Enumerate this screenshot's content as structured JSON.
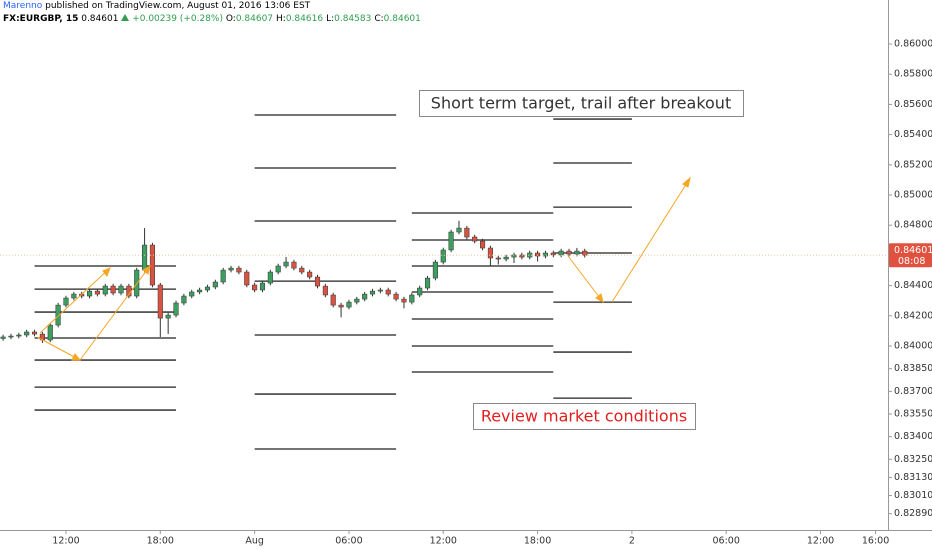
{
  "chart_data": {
    "type": "candlestick",
    "header": {
      "publisher": "Marenno",
      "published": "published on TradingView.com, August 01, 2016 13:06 EST",
      "symbol": "FX:EURGBP, 15",
      "last": "0.84601",
      "change": "+0.00239 (+0.28%)",
      "ohlc": [
        [
          "O:",
          "0.84607"
        ],
        [
          "H:",
          "0.84616"
        ],
        [
          "L:",
          "0.84583"
        ],
        [
          "C:",
          "0.84601"
        ]
      ]
    },
    "open": [
      0.8405,
      0.8406,
      0.84066,
      0.84073,
      0.84093,
      0.84079,
      0.8404,
      0.84139,
      0.84271,
      0.84318,
      0.84344,
      0.84331,
      0.84364,
      0.84344,
      0.84397,
      0.84351,
      0.84397,
      0.84331,
      0.84503,
      0.84669,
      0.84404,
      0.84185,
      0.84205,
      0.84285,
      0.84331,
      0.84358,
      0.84371,
      0.84391,
      0.84424,
      0.84503,
      0.84516,
      0.8449,
      0.84404,
      0.84371,
      0.84417,
      0.8449,
      0.8453,
      0.84556,
      0.84516,
      0.8449,
      0.84457,
      0.84397,
      0.84338,
      0.84271,
      0.84258,
      0.84291,
      0.84311,
      0.84344,
      0.84364,
      0.84371,
      0.84344,
      0.84311,
      0.84291,
      0.84338,
      0.84384,
      0.8445,
      0.84556,
      0.84636,
      0.84755,
      0.84781,
      0.84722,
      0.84695,
      0.84649,
      0.84583,
      0.84576,
      0.84589,
      0.84603,
      0.84589,
      0.84616,
      0.84596,
      0.84616,
      0.84603,
      0.84629,
      0.84609,
      0.84629
    ],
    "high": [
      0.84075,
      0.84081,
      0.84088,
      0.84108,
      0.84108,
      0.84094,
      0.84154,
      0.84286,
      0.84333,
      0.84359,
      0.84359,
      0.84379,
      0.84379,
      0.84412,
      0.84412,
      0.84412,
      0.84412,
      0.84518,
      0.84781,
      0.84684,
      0.84419,
      0.8422,
      0.843,
      0.84346,
      0.84373,
      0.84386,
      0.84406,
      0.84439,
      0.84518,
      0.84531,
      0.84531,
      0.84505,
      0.84419,
      0.84432,
      0.84505,
      0.84545,
      0.8459,
      0.84571,
      0.84531,
      0.84505,
      0.84472,
      0.84412,
      0.84353,
      0.84286,
      0.84306,
      0.84326,
      0.84359,
      0.84379,
      0.84386,
      0.84386,
      0.84359,
      0.84326,
      0.84353,
      0.84399,
      0.84465,
      0.84571,
      0.84651,
      0.8477,
      0.8483,
      0.84796,
      0.84737,
      0.8471,
      0.84664,
      0.84598,
      0.84604,
      0.84618,
      0.84618,
      0.84631,
      0.84631,
      0.84631,
      0.84631,
      0.84644,
      0.84644,
      0.8465,
      0.84644
    ],
    "low": [
      0.84035,
      0.84045,
      0.84051,
      0.84058,
      0.84064,
      0.8402,
      0.84025,
      0.84124,
      0.84256,
      0.84303,
      0.84316,
      0.84316,
      0.84329,
      0.84329,
      0.84336,
      0.84336,
      0.84316,
      0.84316,
      0.84488,
      0.84389,
      0.8406,
      0.8408,
      0.8419,
      0.8427,
      0.84316,
      0.84343,
      0.84356,
      0.84376,
      0.84409,
      0.84488,
      0.84475,
      0.84389,
      0.84356,
      0.84356,
      0.84402,
      0.84475,
      0.84515,
      0.84501,
      0.84475,
      0.84442,
      0.84382,
      0.84323,
      0.84256,
      0.8419,
      0.84243,
      0.84276,
      0.84296,
      0.84329,
      0.84349,
      0.84329,
      0.84296,
      0.8425,
      0.84276,
      0.84323,
      0.84369,
      0.84435,
      0.84541,
      0.84621,
      0.8474,
      0.84707,
      0.8468,
      0.84634,
      0.8453,
      0.8454,
      0.84561,
      0.8455,
      0.84574,
      0.84574,
      0.8456,
      0.84581,
      0.84588,
      0.84588,
      0.84594,
      0.84594,
      0.84586
    ],
    "close": [
      0.8406,
      0.84066,
      0.84073,
      0.84093,
      0.84079,
      0.8404,
      0.84139,
      0.84271,
      0.84318,
      0.84344,
      0.84331,
      0.84364,
      0.84344,
      0.84397,
      0.84351,
      0.84397,
      0.84331,
      0.84503,
      0.84669,
      0.84404,
      0.84185,
      0.84205,
      0.84285,
      0.84331,
      0.84358,
      0.84371,
      0.84391,
      0.84424,
      0.84503,
      0.84516,
      0.8449,
      0.84404,
      0.84371,
      0.84417,
      0.8449,
      0.8453,
      0.84556,
      0.84516,
      0.8449,
      0.84457,
      0.84397,
      0.84338,
      0.84271,
      0.84258,
      0.84291,
      0.84311,
      0.84344,
      0.84364,
      0.84371,
      0.84344,
      0.84311,
      0.84291,
      0.84338,
      0.84384,
      0.8445,
      0.84556,
      0.84636,
      0.84755,
      0.84781,
      0.84722,
      0.84695,
      0.84649,
      0.84583,
      0.84576,
      0.84589,
      0.84603,
      0.84589,
      0.84616,
      0.84596,
      0.84616,
      0.84603,
      0.84629,
      0.84609,
      0.84629,
      0.84601
    ],
    "up_color": "#3d9e5f",
    "down_color": "#d75442",
    "wick_color": "#333333",
    "ylim": [
      0.82795,
      0.86159
    ],
    "yticks": [
      {
        "value": 0.86,
        "label": "0.86000"
      },
      {
        "value": 0.858,
        "label": "0.85800"
      },
      {
        "value": 0.856,
        "label": "0.85600"
      },
      {
        "value": 0.854,
        "label": "0.85400"
      },
      {
        "value": 0.852,
        "label": "0.85200"
      },
      {
        "value": 0.85,
        "label": "0.85000"
      },
      {
        "value": 0.848,
        "label": "0.84800"
      },
      {
        "value": 0.844,
        "label": "0.84400"
      },
      {
        "value": 0.842,
        "label": "0.84200"
      },
      {
        "value": 0.84,
        "label": "0.84000"
      },
      {
        "value": 0.8385,
        "label": "0.83850"
      },
      {
        "value": 0.837,
        "label": "0.83700"
      },
      {
        "value": 0.8355,
        "label": "0.83550"
      },
      {
        "value": 0.834,
        "label": "0.83400"
      },
      {
        "value": 0.8325,
        "label": "0.83250"
      },
      {
        "value": 0.8313,
        "label": "0.83130"
      },
      {
        "value": 0.8301,
        "label": "0.83010"
      },
      {
        "value": 0.8289,
        "label": "0.82890"
      }
    ],
    "xticks": [
      {
        "value": 8,
        "label": "12:00"
      },
      {
        "value": 20,
        "label": "18:00"
      },
      {
        "value": 32,
        "label": "Aug"
      },
      {
        "value": 44,
        "label": "06:00"
      },
      {
        "value": 56,
        "label": "12:00"
      },
      {
        "value": 68,
        "label": "18:00"
      },
      {
        "value": 80,
        "label": "2"
      },
      {
        "value": 92,
        "label": "06:00"
      },
      {
        "value": 104,
        "label": "12:00"
      },
      {
        "value": 111,
        "label": "16:00"
      }
    ],
    "last_price": {
      "value": 0.84601,
      "label": "0.84601"
    },
    "countdown": "08:08",
    "levels": [
      {
        "x_range": [
          4,
          22
        ],
        "values": [
          0.8453,
          0.84377,
          0.84225,
          0.84053,
          0.83907,
          0.83728,
          0.83576
        ]
      },
      {
        "x_range": [
          32,
          50
        ],
        "values": [
          0.8553,
          0.85179,
          0.84828,
          0.8443,
          0.84073,
          0.83682,
          0.83318
        ]
      },
      {
        "x_range": [
          52,
          70
        ],
        "values": [
          0.84881,
          0.84702,
          0.8453,
          0.84358,
          0.84179,
          0.84,
          0.83828
        ]
      },
      {
        "x_range": [
          70,
          80
        ],
        "values": [
          0.85503,
          0.85212,
          0.8492,
          0.84616,
          0.84291,
          0.8396,
          0.83655
        ]
      }
    ],
    "annotations": [
      "Short term target, trail after breakout",
      "Review market conditions"
    ]
  }
}
